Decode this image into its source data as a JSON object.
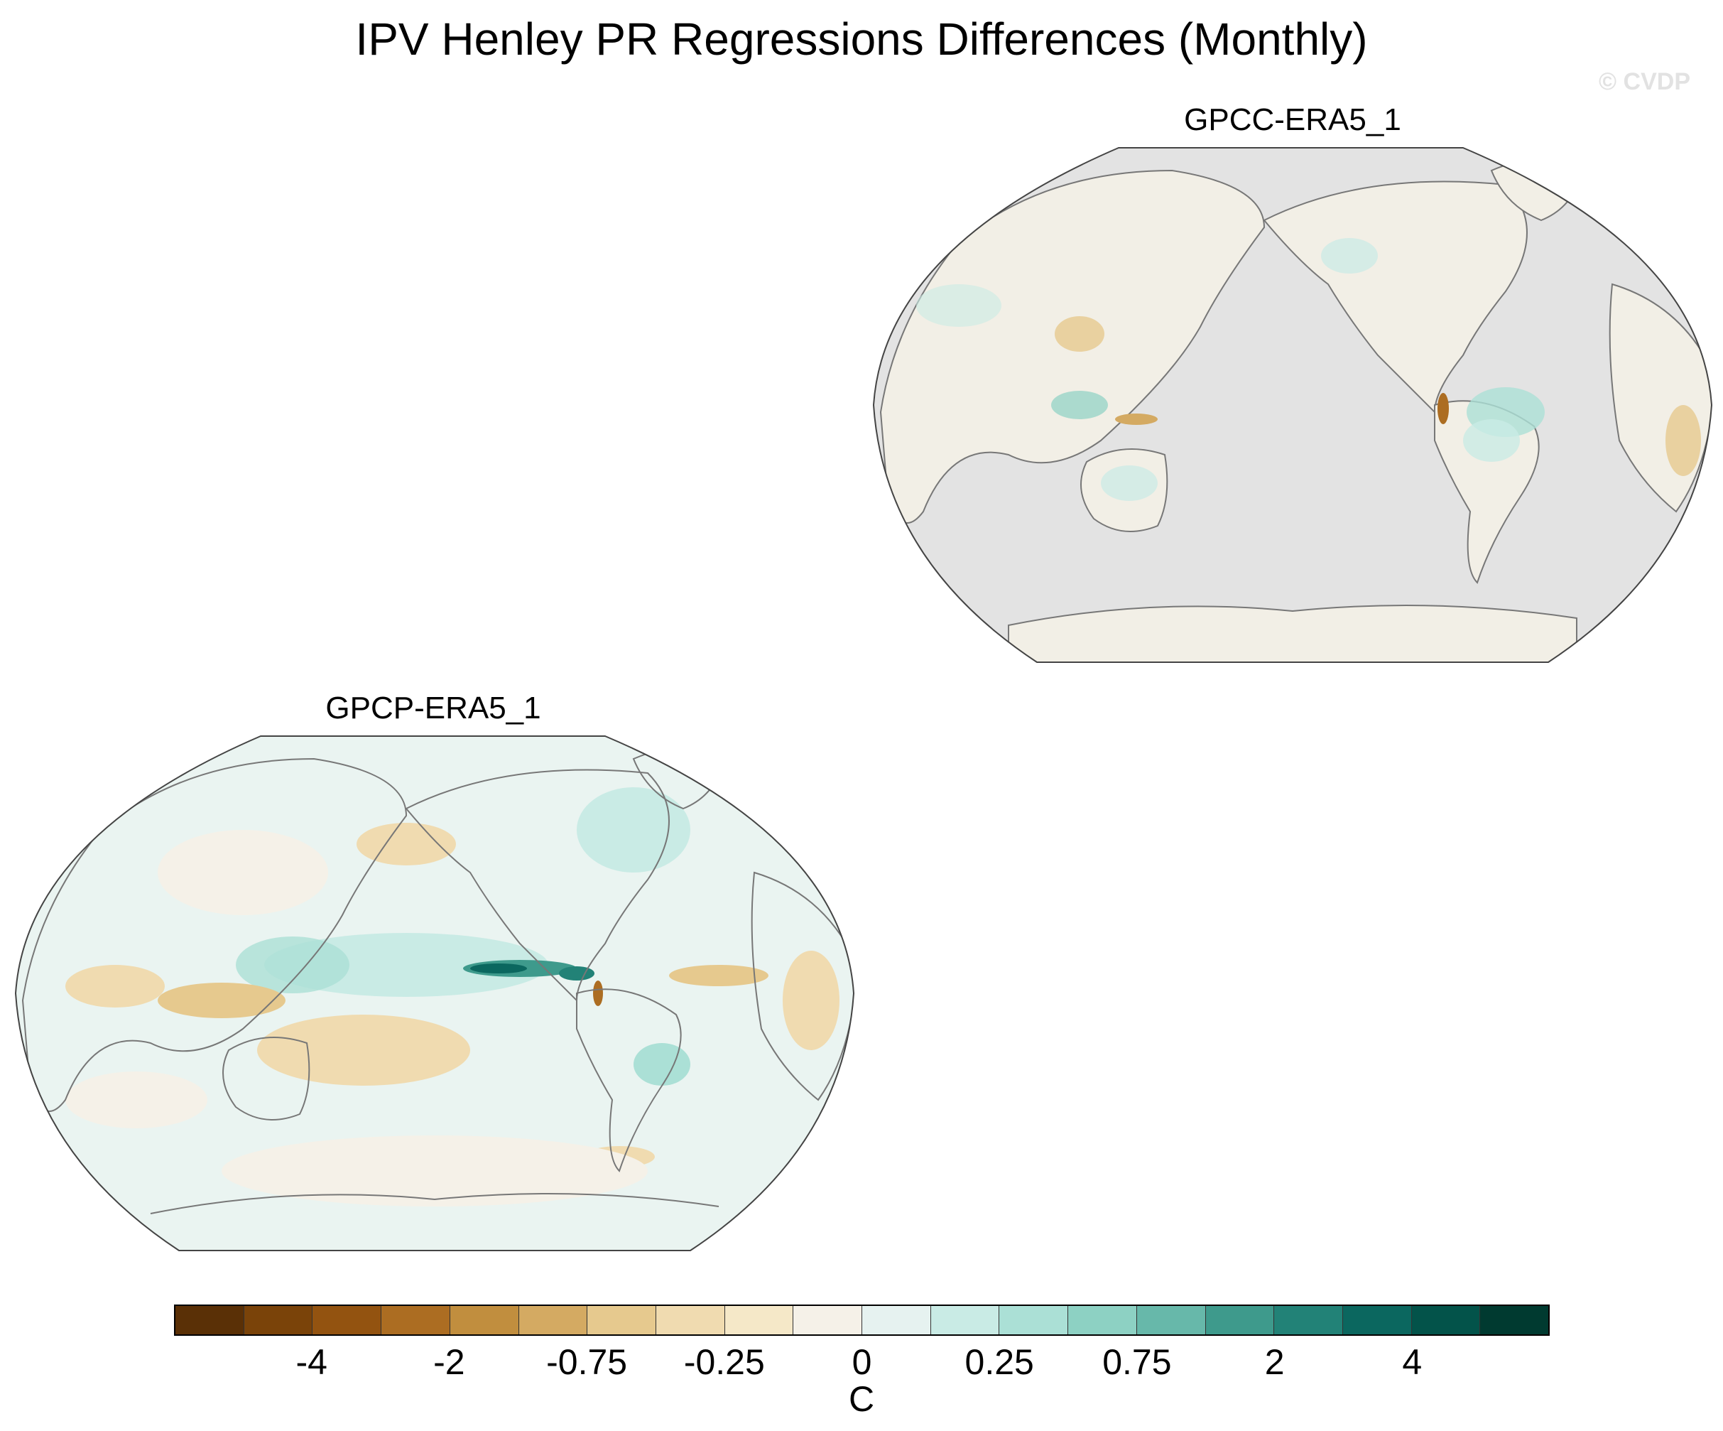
{
  "title": "IPV Henley PR Regressions Differences (Monthly)",
  "watermark": "© CVDP",
  "panels": [
    {
      "name": "GPCC-ERA5_1",
      "missing_color": "#e3e3e3"
    },
    {
      "name": "GPCP-ERA5_1"
    }
  ],
  "colorbar": {
    "colors": [
      "#5a3006",
      "#7a4309",
      "#935310",
      "#ac6d22",
      "#c18e3e",
      "#d4aa62",
      "#e6c98e",
      "#f0dbb0",
      "#f5e8c8",
      "#f5f1e8",
      "#e6f2f0",
      "#c9ebe5",
      "#abe0d6",
      "#8dd1c3",
      "#67b8aa",
      "#3e9a8c",
      "#228277",
      "#0b675f",
      "#03534a",
      "#003a30"
    ],
    "labels": [
      "-4",
      "-2",
      "-0.75",
      "-0.25",
      "0",
      "0.25",
      "0.75",
      "2",
      "4"
    ],
    "units": "C"
  }
}
